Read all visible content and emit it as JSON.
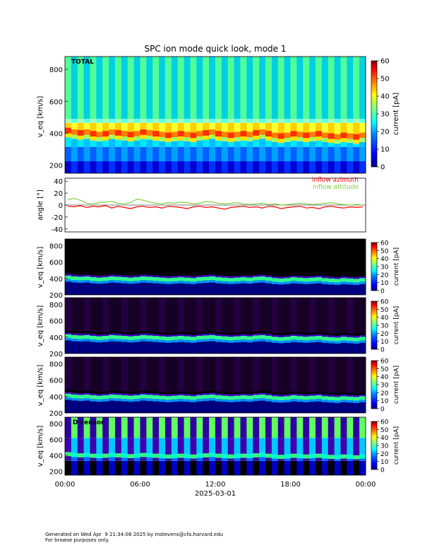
{
  "footer": {
    "line1": "Generated on Wed Apr  9 21:34:08 2025 by mstevens@cfa.harvard.edu",
    "line2": "For browse purposes only."
  },
  "chart_data": [
    {
      "type": "heatmap",
      "panel": "total",
      "title": "SPC ion mode quick look, mode 1",
      "label": "TOTAL",
      "ylabel": "v_eq [km/s]",
      "yticks": [
        200,
        400,
        600,
        800
      ],
      "ylim": [
        150,
        880
      ],
      "colorbar": {
        "label": "current [pA]",
        "ticks": [
          0,
          10,
          20,
          30,
          40,
          50,
          60
        ],
        "range": [
          0,
          60
        ]
      },
      "colormap": [
        "#00007f",
        "#0000ff",
        "#007fff",
        "#00ffff",
        "#7fff7f",
        "#ffff00",
        "#ff7f00",
        "#ff0000",
        "#7f0000"
      ],
      "bulk_velocity_kms": [
        420,
        410,
        405,
        410,
        400,
        395,
        400,
        410,
        405,
        400,
        395,
        400,
        410,
        405,
        400,
        395,
        390,
        395,
        400,
        395,
        390,
        400,
        405,
        410,
        400,
        395,
        390,
        395,
        400,
        395,
        405,
        410,
        400,
        390,
        385,
        390,
        400,
        395,
        390,
        395,
        400,
        390,
        385,
        380,
        390,
        385,
        380,
        390
      ]
    },
    {
      "type": "line",
      "panel": "angle",
      "ylabel": "angle [°]",
      "yticks": [
        -40,
        -20,
        0,
        20,
        40
      ],
      "ylim": [
        -45,
        45
      ],
      "series": [
        {
          "name": "inflow azimuth",
          "color": "#ff0000",
          "values": [
            -2,
            -3,
            -1,
            -4,
            -2,
            -3,
            -1,
            -5,
            -2,
            -4,
            -6,
            -3,
            -2,
            -4,
            -3,
            -5,
            -2,
            -3,
            -4,
            -6,
            -3,
            -2,
            -4,
            -3,
            -5,
            -7,
            -4,
            -3,
            -2,
            -4,
            -3,
            -5,
            -2,
            -3,
            -6,
            -4,
            -3,
            -2,
            -5,
            -4,
            -6,
            -3,
            -2,
            -4,
            -5,
            -3,
            -4,
            -3
          ]
        },
        {
          "name": "inflow attitude",
          "color": "#7fd03a",
          "values": [
            9,
            11,
            8,
            3,
            2,
            4,
            5,
            6,
            3,
            2,
            4,
            10,
            8,
            5,
            3,
            2,
            4,
            3,
            5,
            4,
            2,
            3,
            6,
            5,
            3,
            2,
            3,
            4,
            2,
            1,
            2,
            3,
            1,
            2,
            0,
            1,
            2,
            3,
            2,
            1,
            2,
            3,
            4,
            2,
            1,
            0,
            1,
            0
          ]
        }
      ]
    },
    {
      "type": "heatmap",
      "panel": "sensor-a",
      "ylabel": "v_eq [km/s]",
      "yticks": [
        200,
        400,
        600,
        800
      ],
      "ylim": [
        200,
        880
      ],
      "colorbar": {
        "label": "current [pA]",
        "ticks": [
          0,
          10,
          20,
          30,
          40,
          50,
          60
        ],
        "range": [
          0,
          60
        ]
      }
    },
    {
      "type": "heatmap",
      "panel": "sensor-b",
      "ylabel": "v_eq [km/s]",
      "yticks": [
        200,
        400,
        600,
        800
      ],
      "ylim": [
        200,
        880
      ],
      "colorbar": {
        "label": "current [pA]",
        "ticks": [
          0,
          10,
          20,
          30,
          40,
          50,
          60
        ],
        "range": [
          0,
          60
        ]
      }
    },
    {
      "type": "heatmap",
      "panel": "sensor-c",
      "ylabel": "v_eq [km/s]",
      "yticks": [
        200,
        400,
        600,
        800
      ],
      "ylim": [
        200,
        880
      ],
      "colorbar": {
        "label": "current [pA]",
        "ticks": [
          0,
          10,
          20,
          30,
          40,
          50,
          60
        ],
        "range": [
          0,
          60
        ]
      }
    },
    {
      "type": "heatmap",
      "panel": "sensor-d",
      "label": "D sensor",
      "ylabel": "v_eq [km/s]",
      "yticks": [
        200,
        400,
        600,
        800
      ],
      "ylim": [
        150,
        880
      ],
      "colorbar": {
        "label": "current [pA]",
        "ticks": [
          0,
          10,
          20,
          30,
          40,
          50,
          60
        ],
        "range": [
          0,
          60
        ]
      },
      "xticks": [
        "00:00",
        "06:00",
        "12:00",
        "18:00",
        "00:00"
      ],
      "xlabel": "2025-03-01"
    }
  ]
}
